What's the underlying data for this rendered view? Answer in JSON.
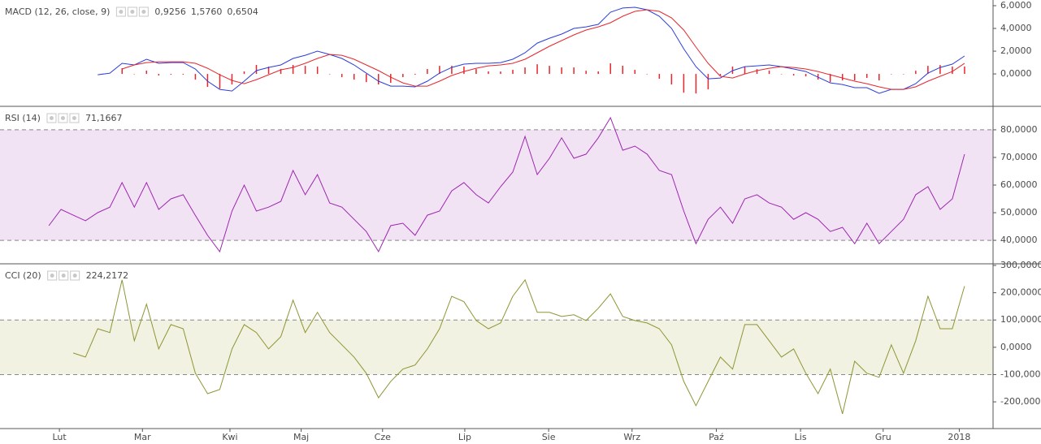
{
  "chart_data": {
    "type": "indicator_panels",
    "xlim": [
      0,
      244
    ],
    "xticks": [
      {
        "value": 14.6,
        "label": "Lut"
      },
      {
        "value": 35,
        "label": "Mar"
      },
      {
        "value": 56.5,
        "label": "Kwi"
      },
      {
        "value": 74,
        "label": "Maj"
      },
      {
        "value": 94,
        "label": "Cze"
      },
      {
        "value": 114.2,
        "label": "Lip"
      },
      {
        "value": 134.8,
        "label": "Sie"
      },
      {
        "value": 155.3,
        "label": "Wrz"
      },
      {
        "value": 176,
        "label": "Paź"
      },
      {
        "value": 196.7,
        "label": "Lis"
      },
      {
        "value": 217,
        "label": "Gru"
      },
      {
        "value": 235.7,
        "label": "2018"
      }
    ],
    "x": [
      12,
      15,
      18,
      21,
      24,
      27,
      30,
      33,
      36,
      39,
      42,
      45,
      48,
      51,
      54,
      57,
      60,
      63,
      66,
      69,
      72,
      75,
      78,
      81,
      84,
      87,
      90,
      93,
      96,
      99,
      102,
      105,
      108,
      111,
      114,
      117,
      120,
      123,
      126,
      129,
      132,
      135,
      138,
      141,
      144,
      147,
      150,
      153,
      156,
      159,
      162,
      165,
      168,
      171,
      174,
      177,
      180,
      183,
      186,
      189,
      192,
      195,
      198,
      201,
      204,
      207,
      210,
      213,
      216,
      219,
      222,
      225,
      228,
      231,
      234,
      237
    ],
    "panels": [
      {
        "type": "line",
        "title": "MACD (12, 26, close, 9)",
        "readouts": [
          {
            "text": "0,9256",
            "color": "#e8262b"
          },
          {
            "text": "1,5760",
            "color": "#2a3ddb"
          },
          {
            "text": "0,6504",
            "color": "#e8262b"
          }
        ],
        "ylim": [
          -2.85,
          6.5
        ],
        "yticks": [
          {
            "value": 0,
            "label": "0,0000"
          },
          {
            "value": 2,
            "label": "2,0000"
          },
          {
            "value": 4,
            "label": "4,0000"
          },
          {
            "value": 6,
            "label": "6,0000"
          }
        ],
        "series": [
          {
            "style": "histogram",
            "color": "#e8262b",
            "values": [
              null,
              null,
              null,
              null,
              null,
              null,
              0.5,
              0.0,
              0.29,
              -0.14,
              -0.07,
              -0.07,
              -0.5,
              -1.14,
              -1.29,
              -0.93,
              0.22,
              0.79,
              0.64,
              0.43,
              0.79,
              0.71,
              0.64,
              0.0,
              -0.28,
              -0.5,
              -0.72,
              -0.93,
              -0.78,
              -0.28,
              -0.07,
              0.43,
              0.71,
              0.71,
              0.65,
              0.43,
              0.22,
              0.21,
              0.36,
              0.57,
              0.85,
              0.71,
              0.57,
              0.57,
              0.28,
              0.22,
              0.93,
              0.72,
              0.36,
              0.0,
              -0.43,
              -0.93,
              -1.65,
              -1.72,
              -1.36,
              -0.15,
              0.65,
              0.64,
              0.42,
              0.29,
              0.0,
              -0.14,
              -0.22,
              -0.5,
              -0.72,
              -0.57,
              -0.57,
              -0.35,
              -0.57,
              0.0,
              0.0,
              0.28,
              0.71,
              0.78,
              0.65,
              0.6504
            ]
          },
          {
            "style": "line",
            "color": "#2a3ddb",
            "values": [
              null,
              null,
              null,
              null,
              -0.07,
              0.07,
              0.93,
              0.79,
              1.29,
              0.93,
              1.0,
              1.0,
              0.43,
              -0.64,
              -1.36,
              -1.5,
              -0.64,
              0.29,
              0.57,
              0.79,
              1.36,
              1.64,
              2.0,
              1.71,
              1.36,
              0.79,
              0.07,
              -0.64,
              -1.07,
              -1.07,
              -1.14,
              -0.64,
              0.07,
              0.57,
              0.86,
              0.93,
              0.93,
              1.0,
              1.29,
              1.86,
              2.71,
              3.14,
              3.5,
              4.0,
              4.14,
              4.36,
              5.43,
              5.79,
              5.86,
              5.64,
              5.07,
              4.0,
              2.21,
              0.64,
              -0.43,
              -0.36,
              0.29,
              0.64,
              0.71,
              0.79,
              0.64,
              0.43,
              0.21,
              -0.29,
              -0.79,
              -0.93,
              -1.21,
              -1.21,
              -1.71,
              -1.36,
              -1.36,
              -0.86,
              0.07,
              0.57,
              0.86,
              1.576
            ]
          },
          {
            "style": "line",
            "color": "#e8262b",
            "values": [
              null,
              null,
              null,
              null,
              null,
              null,
              0.43,
              0.79,
              1.0,
              1.07,
              1.07,
              1.07,
              0.93,
              0.5,
              -0.07,
              -0.57,
              -0.86,
              -0.5,
              -0.07,
              0.36,
              0.57,
              0.93,
              1.36,
              1.71,
              1.64,
              1.29,
              0.79,
              0.29,
              -0.29,
              -0.79,
              -1.07,
              -1.07,
              -0.64,
              -0.14,
              0.21,
              0.5,
              0.71,
              0.79,
              0.93,
              1.29,
              1.86,
              2.43,
              2.93,
              3.43,
              3.86,
              4.14,
              4.5,
              5.07,
              5.5,
              5.64,
              5.5,
              4.93,
              3.86,
              2.36,
              0.93,
              -0.21,
              -0.36,
              0.0,
              0.29,
              0.5,
              0.64,
              0.57,
              0.43,
              0.21,
              -0.07,
              -0.36,
              -0.64,
              -0.86,
              -1.14,
              -1.36,
              -1.36,
              -1.14,
              -0.64,
              -0.21,
              0.21,
              0.9256
            ]
          }
        ]
      },
      {
        "type": "line",
        "title": "RSI (14)",
        "readouts": [
          {
            "text": "71,1667",
            "color": "#9c27b0"
          }
        ],
        "ylim": [
          31.5,
          88.5
        ],
        "yticks": [
          {
            "value": 40,
            "label": "40,0000"
          },
          {
            "value": 50,
            "label": "50,0000"
          },
          {
            "value": 60,
            "label": "60,0000"
          },
          {
            "value": 70,
            "label": "70,0000"
          },
          {
            "value": 80,
            "label": "80,0000"
          }
        ],
        "band": [
          40,
          80
        ],
        "band_color": "#f2e3f4",
        "series": [
          {
            "style": "line",
            "color": "#9c27b0",
            "values": [
              45.3,
              51.2,
              49.1,
              47.1,
              50,
              52,
              60.9,
              52,
              60.9,
              51.2,
              55,
              56.5,
              49,
              41.8,
              35.9,
              50.6,
              60,
              50.6,
              52,
              54.1,
              65.3,
              56.5,
              63.8,
              53.5,
              52,
              47.6,
              43.2,
              35.9,
              45.3,
              46.2,
              41.8,
              49.1,
              50.6,
              57.9,
              60.9,
              56.5,
              53.5,
              59.4,
              64.7,
              77.6,
              63.8,
              69.7,
              77.1,
              69.7,
              71.2,
              77.1,
              84.4,
              72.6,
              74.1,
              71.2,
              65.3,
              63.8,
              50.6,
              38.8,
              47.6,
              52,
              46.2,
              55,
              56.5,
              53.5,
              52,
              47.6,
              50,
              47.6,
              43.2,
              44.7,
              38.8,
              46.2,
              38.8,
              43.2,
              47.6,
              56.5,
              59.4,
              51.2,
              55,
              71.1667
            ]
          }
        ]
      },
      {
        "type": "line",
        "title": "CCI (20)",
        "readouts": [
          {
            "text": "224,2172",
            "color": "#8c8c22"
          }
        ],
        "ylim": [
          -298,
          306
        ],
        "yticks": [
          {
            "value": -200,
            "label": "-200,0000"
          },
          {
            "value": -100,
            "label": "-100,0000"
          },
          {
            "value": 0,
            "label": "0,0000"
          },
          {
            "value": 100,
            "label": "100,0000"
          },
          {
            "value": 200,
            "label": "200,0000"
          },
          {
            "value": 300,
            "label": "300,0000"
          }
        ],
        "band": [
          -100,
          100
        ],
        "band_color": "#f1f2e2",
        "series": [
          {
            "style": "line",
            "color": "#8f9533",
            "values": [
              null,
              null,
              -21,
              -36,
              68,
              54,
              247,
              24,
              158,
              -6,
              83,
              68,
              -95,
              -170,
              -155,
              -6,
              83,
              54,
              -6,
              39,
              173,
              54,
              128,
              54,
              9,
              -36,
              -95,
              -185,
              -125,
              -80,
              -65,
              -6,
              68,
              187,
              167,
              98,
              68,
              89,
              187,
              247,
              128,
              128,
              113,
              119,
              98,
              143,
              196,
              113,
              98,
              89,
              68,
              9,
              -125,
              -214,
              -125,
              -36,
              -80,
              83,
              83,
              24,
              -36,
              -6,
              -95,
              -170,
              -80,
              -244,
              -51,
              -95,
              -110,
              9,
              -95,
              24,
              187,
              68,
              68,
              224.2172
            ]
          }
        ]
      }
    ]
  }
}
